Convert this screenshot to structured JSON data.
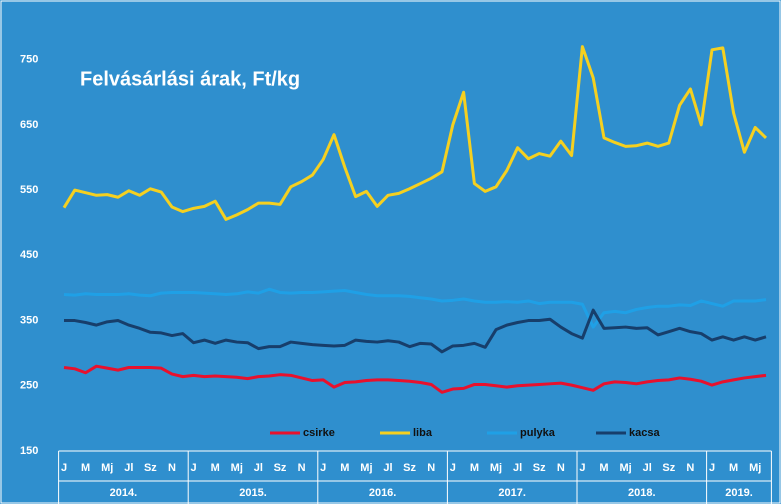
{
  "chart_data": {
    "type": "line",
    "title": "Felvásárlási árak, Ft/kg",
    "categories": [
      "J",
      null,
      "M",
      null,
      "Mj",
      null,
      "Jl",
      null,
      "Sz",
      null,
      "N",
      null,
      "J",
      null,
      "M",
      null,
      "Mj",
      null,
      "Jl",
      null,
      "Sz",
      null,
      "N",
      null,
      "J",
      null,
      "M",
      null,
      "Mj",
      null,
      "Jl",
      null,
      "Sz",
      null,
      "N",
      null,
      "J",
      null,
      "M",
      null,
      "Mj",
      null,
      "Jl",
      null,
      "Sz",
      null,
      "N",
      null,
      "J",
      null,
      "M",
      null,
      "Mj",
      null,
      "Jl",
      null,
      "Sz",
      null,
      "N",
      null,
      "J",
      null,
      "M",
      null,
      "Mj",
      null
    ],
    "years": [
      "2014.",
      "2015.",
      "2016.",
      "2017.",
      "2018.",
      "2019."
    ],
    "ylim": [
      150,
      800
    ],
    "yticks": [
      150,
      250,
      350,
      450,
      550,
      650,
      750
    ],
    "grid": false,
    "legend": "bottom",
    "series": [
      {
        "name": "csirke",
        "color": "#e8112d",
        "values": [
          278,
          276,
          270,
          280,
          277,
          274,
          278,
          278,
          278,
          277,
          268,
          264,
          266,
          264,
          265,
          264,
          263,
          261,
          264,
          265,
          267,
          266,
          262,
          258,
          259,
          248,
          255,
          256,
          258,
          259,
          259,
          258,
          257,
          255,
          252,
          240,
          245,
          246,
          252,
          252,
          250,
          248,
          250,
          251,
          252,
          253,
          254,
          251,
          247,
          243,
          253,
          256,
          255,
          253,
          256,
          258,
          259,
          262,
          260,
          257,
          251,
          256,
          259,
          262,
          264,
          266
        ]
      },
      {
        "name": "liba",
        "color": "#f5d020",
        "values": [
          523,
          550,
          546,
          542,
          543,
          539,
          549,
          542,
          552,
          547,
          524,
          517,
          522,
          525,
          533,
          505,
          512,
          520,
          530,
          530,
          528,
          555,
          563,
          573,
          597,
          635,
          585,
          540,
          548,
          525,
          542,
          545,
          552,
          560,
          568,
          578,
          650,
          700,
          560,
          548,
          555,
          580,
          615,
          598,
          606,
          602,
          625,
          603,
          770,
          722,
          630,
          623,
          617,
          618,
          622,
          617,
          622,
          680,
          705,
          650,
          765,
          768,
          668,
          608,
          646,
          630
        ]
      },
      {
        "name": "pulyka",
        "color": "#1fa0e6",
        "values": [
          390,
          389,
          391,
          390,
          390,
          390,
          391,
          389,
          388,
          392,
          393,
          393,
          393,
          392,
          391,
          390,
          391,
          394,
          392,
          398,
          393,
          392,
          393,
          393,
          394,
          395,
          396,
          393,
          390,
          388,
          388,
          388,
          387,
          385,
          383,
          380,
          381,
          383,
          380,
          378,
          378,
          379,
          378,
          380,
          376,
          378,
          378,
          378,
          375,
          340,
          362,
          364,
          362,
          367,
          370,
          372,
          372,
          374,
          373,
          380,
          376,
          372,
          380,
          380,
          380,
          382
        ]
      },
      {
        "name": "kacsa",
        "color": "#173e6b",
        "values": [
          350,
          350,
          347,
          343,
          348,
          350,
          343,
          338,
          332,
          331,
          327,
          330,
          316,
          320,
          315,
          320,
          317,
          316,
          307,
          310,
          310,
          317,
          315,
          313,
          312,
          311,
          312,
          320,
          318,
          317,
          319,
          317,
          310,
          315,
          314,
          302,
          311,
          312,
          315,
          309,
          336,
          343,
          347,
          350,
          350,
          352,
          340,
          330,
          323,
          366,
          338,
          339,
          340,
          338,
          339,
          328,
          333,
          338,
          333,
          330,
          320,
          325,
          320,
          325,
          320,
          325
        ]
      }
    ]
  }
}
